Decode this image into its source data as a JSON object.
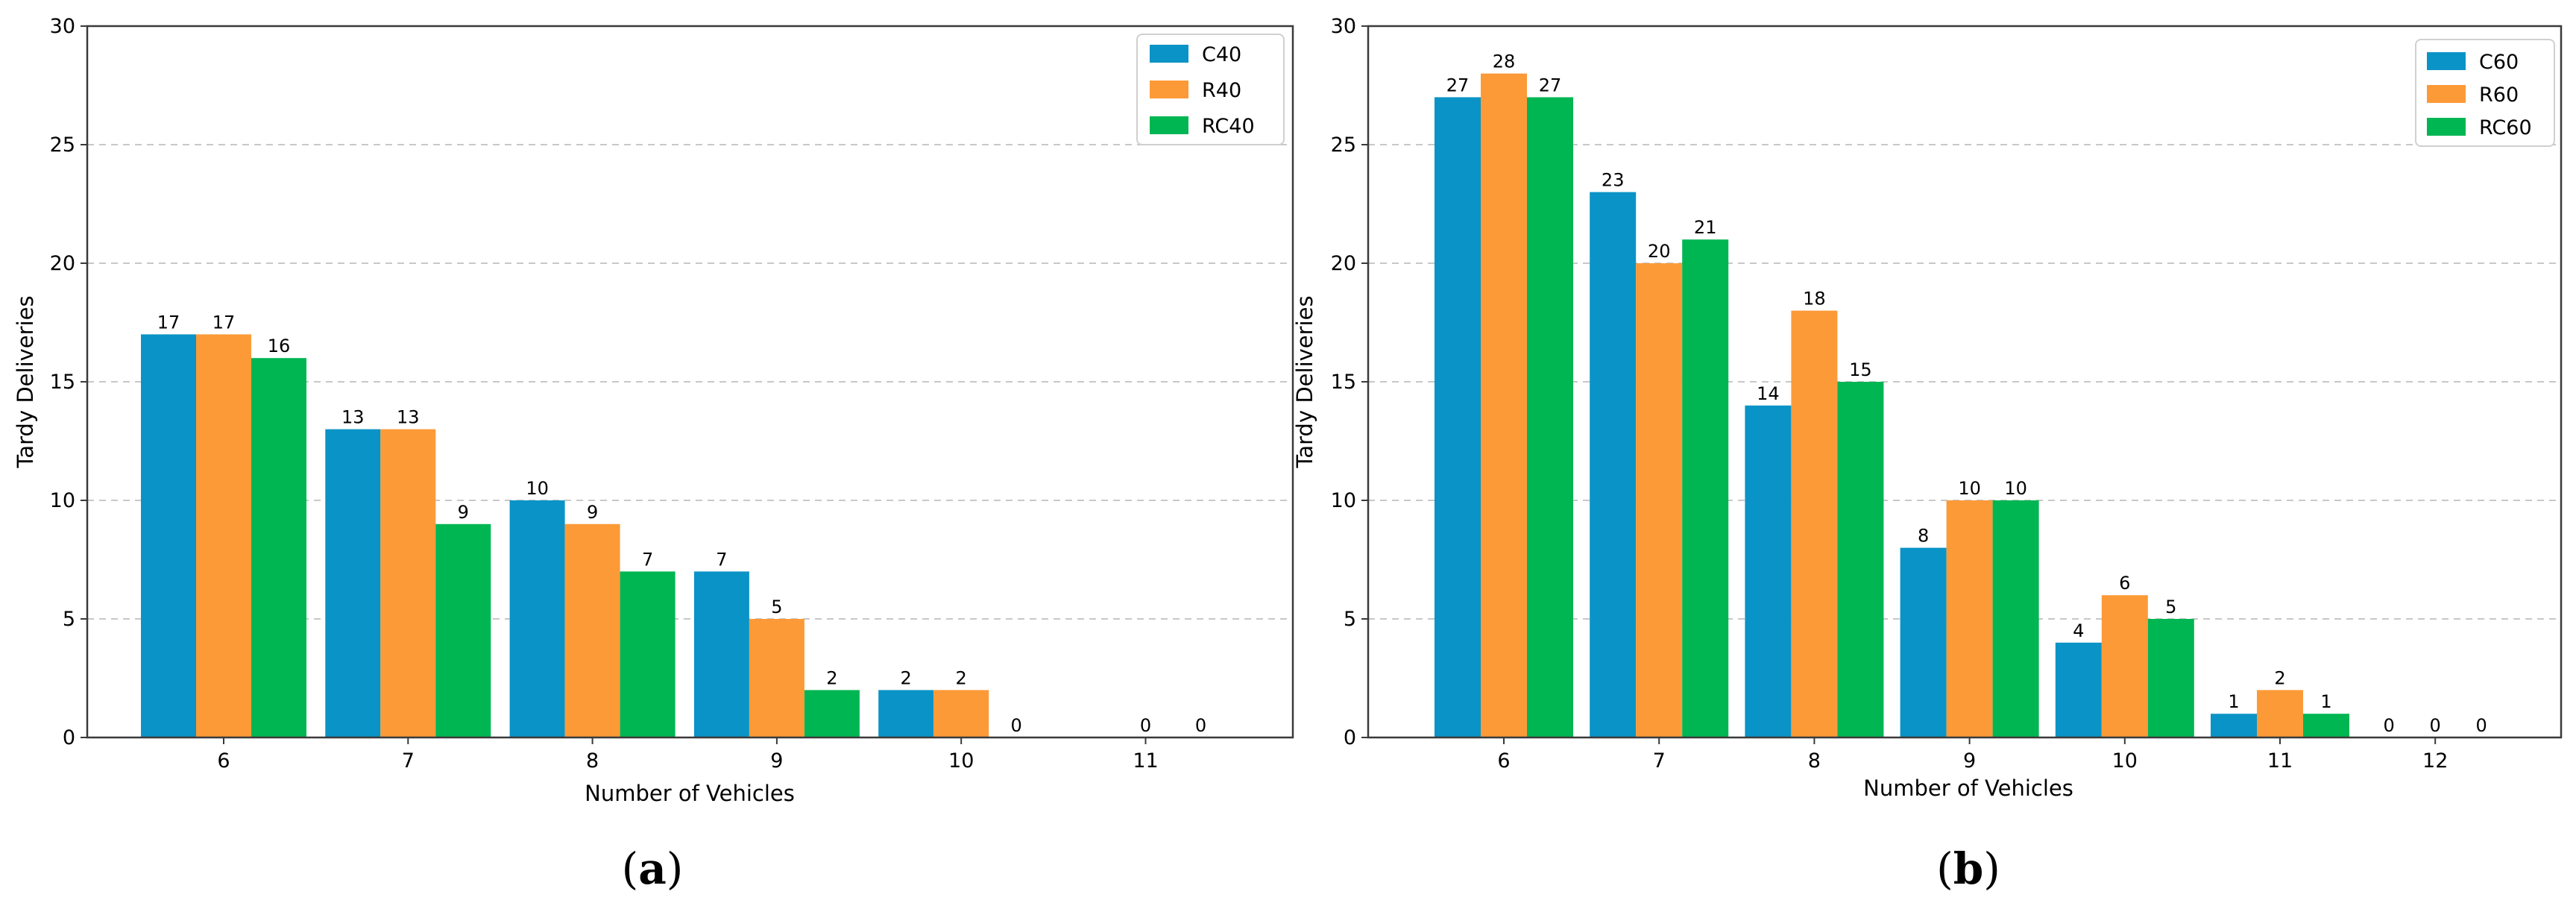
{
  "colors": {
    "series_1": "#0a93c6",
    "series_2": "#fc9a37",
    "series_3": "#00b652"
  },
  "chart_data": [
    {
      "type": "bar",
      "caption": "a",
      "categories": [
        "6",
        "7",
        "8",
        "9",
        "10",
        "11"
      ],
      "series": [
        {
          "name": "C40",
          "values": [
            17,
            13,
            10,
            7,
            2,
            0
          ]
        },
        {
          "name": "R40",
          "values": [
            17,
            13,
            9,
            5,
            2,
            0
          ]
        },
        {
          "name": "RC40",
          "values": [
            16,
            9,
            7,
            2,
            0,
            0
          ]
        }
      ],
      "bar_labels": [
        [
          "17",
          "13",
          "10",
          "7",
          "2",
          ""
        ],
        [
          "17",
          "13",
          "9",
          "5",
          "2",
          "0"
        ],
        [
          "16",
          "9",
          "7",
          "2",
          "0",
          "0"
        ]
      ],
      "xlabel": "Number of Vehicles",
      "ylabel": "Tardy Deliveries",
      "ylim": [
        0,
        30
      ],
      "yticks": [
        "0",
        "5",
        "10",
        "15",
        "20",
        "25",
        "30"
      ],
      "grid": "horizontal dashed",
      "legend": "top-right"
    },
    {
      "type": "bar",
      "caption": "b",
      "categories": [
        "6",
        "7",
        "8",
        "9",
        "10",
        "11",
        "12"
      ],
      "series": [
        {
          "name": "C60",
          "values": [
            27,
            23,
            14,
            8,
            4,
            1,
            0
          ]
        },
        {
          "name": "R60",
          "values": [
            28,
            20,
            18,
            10,
            6,
            2,
            0
          ]
        },
        {
          "name": "RC60",
          "values": [
            27,
            21,
            15,
            10,
            5,
            1,
            0
          ]
        }
      ],
      "bar_labels": [
        [
          "27",
          "23",
          "14",
          "8",
          "4",
          "1",
          "0"
        ],
        [
          "28",
          "20",
          "18",
          "10",
          "6",
          "2",
          "0"
        ],
        [
          "27",
          "21",
          "15",
          "10",
          "5",
          "1",
          "0"
        ]
      ],
      "xlabel": "Number of Vehicles",
      "ylabel": "Tardy Deliveries",
      "ylim": [
        0,
        30
      ],
      "yticks": [
        "0",
        "5",
        "10",
        "15",
        "20",
        "25",
        "30"
      ],
      "grid": "horizontal dashed",
      "legend": "top-right"
    }
  ]
}
